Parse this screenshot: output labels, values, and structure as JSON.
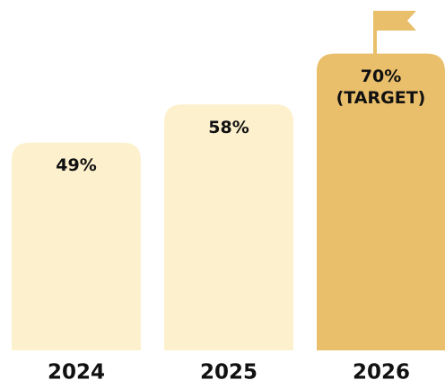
{
  "chart_data": {
    "type": "bar",
    "categories": [
      "2024",
      "2025",
      "2026"
    ],
    "values": [
      49,
      58,
      70
    ],
    "value_labels": [
      "49%",
      "58%",
      "70%"
    ],
    "colors": [
      "#fdf0cd",
      "#fdf0cd",
      "#e9bf6b"
    ],
    "annotation": "(TARGET)",
    "ylim": [
      0,
      82
    ]
  }
}
